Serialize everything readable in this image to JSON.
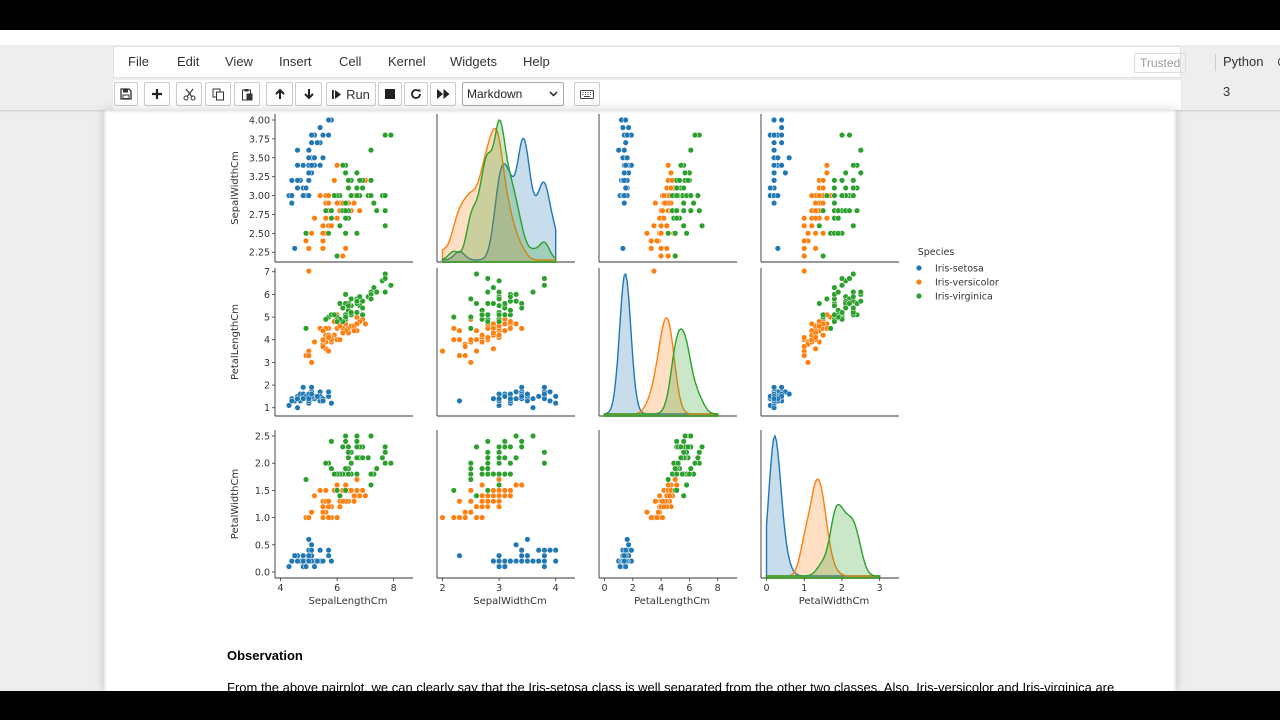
{
  "menubar": {
    "items": [
      "File",
      "Edit",
      "View",
      "Insert",
      "Cell",
      "Kernel",
      "Widgets",
      "Help"
    ],
    "trusted_label": "Trusted",
    "kernel_name": "Python 3"
  },
  "toolbar": {
    "run_label": "Run",
    "cell_type": "Markdown",
    "icons": [
      "save-icon",
      "add-cell-icon",
      "cut-icon",
      "copy-icon",
      "paste-icon",
      "move-up-icon",
      "move-down-icon",
      "run-icon",
      "stop-icon",
      "restart-icon",
      "fast-forward-icon",
      "keyboard-icon"
    ]
  },
  "markdown": {
    "heading": "Observation",
    "paragraph": "From the above pairplot, we can clearly say that the Iris-setosa class is well separated from the other two classes. Also, Iris-versicolor and Iris-virginica are"
  },
  "chart_data": {
    "type": "scatter",
    "subtype": "pairplot",
    "legend": {
      "title": "Species",
      "entries": [
        "Iris-setosa",
        "Iris-versicolor",
        "Iris-virginica"
      ],
      "placement": "right"
    },
    "colors": {
      "Iris-setosa": "#1f77b4",
      "Iris-versicolor": "#ff7f0e",
      "Iris-virginica": "#2ca02c"
    },
    "variables": [
      "SepalLengthCm",
      "SepalWidthCm",
      "PetalLengthCm",
      "PetalWidthCm"
    ],
    "rows": [
      "SepalWidthCm",
      "PetalLengthCm",
      "PetalWidthCm"
    ],
    "columns": [
      "SepalLengthCm",
      "SepalWidthCm",
      "PetalLengthCm",
      "PetalWidthCm"
    ],
    "diagonal": "kde",
    "axis_ranges": {
      "SepalLengthCm": [
        4,
        8
      ],
      "SepalWidthCm": [
        2,
        4
      ],
      "PetalLengthCm": [
        0,
        8
      ],
      "PetalWidthCm": [
        0,
        3
      ]
    },
    "ticks": {
      "SepalLengthCm": [
        "4",
        "6",
        "8"
      ],
      "SepalWidthCm": [
        "2",
        "3",
        "4"
      ],
      "PetalLengthCm": [
        "0",
        "2",
        "4",
        "6",
        "8"
      ],
      "PetalWidthCm": [
        "0",
        "1",
        "2",
        "3"
      ]
    },
    "y_ticks": {
      "SepalWidthCm": [
        "2.25",
        "2.50",
        "2.75",
        "3.00",
        "3.25",
        "3.50",
        "3.75",
        "4.00"
      ],
      "PetalLengthCm": [
        "1",
        "2",
        "3",
        "4",
        "5",
        "6",
        "7"
      ],
      "PetalWidthCm": [
        "0.0",
        "0.5",
        "1.0",
        "1.5",
        "2.0",
        "2.5"
      ]
    },
    "grid": false,
    "data": {
      "Iris-setosa": {
        "SepalLengthCm": [
          5.1,
          4.9,
          4.7,
          4.6,
          5.0,
          5.4,
          4.6,
          5.0,
          4.4,
          4.9,
          5.4,
          4.8,
          4.8,
          4.3,
          5.8,
          5.7,
          5.4,
          5.1,
          5.7,
          5.1,
          5.4,
          5.1,
          4.6,
          5.1,
          4.8,
          5.0,
          5.0,
          5.2,
          5.2,
          4.7,
          4.8,
          5.4,
          5.2,
          5.5,
          4.9,
          5.0,
          5.5,
          4.9,
          4.4,
          5.1,
          5.0,
          4.5,
          4.4,
          5.0,
          5.1,
          4.8,
          5.1,
          4.6,
          5.3,
          5.0
        ],
        "SepalWidthCm": [
          3.5,
          3.0,
          3.2,
          3.1,
          3.6,
          3.9,
          3.4,
          3.4,
          2.9,
          3.1,
          3.7,
          3.4,
          3.0,
          3.0,
          4.0,
          4.0,
          3.9,
          3.5,
          3.8,
          3.8,
          3.4,
          3.7,
          3.6,
          3.3,
          3.4,
          3.0,
          3.4,
          3.5,
          3.4,
          3.2,
          3.1,
          3.4,
          3.8,
          3.8,
          3.1,
          3.2,
          3.5,
          3.1,
          3.0,
          3.4,
          3.5,
          2.3,
          3.2,
          3.5,
          3.8,
          3.0,
          3.8,
          3.2,
          3.7,
          3.3
        ],
        "PetalLengthCm": [
          1.4,
          1.4,
          1.3,
          1.5,
          1.4,
          1.7,
          1.4,
          1.5,
          1.4,
          1.5,
          1.5,
          1.6,
          1.4,
          1.1,
          1.2,
          1.5,
          1.3,
          1.4,
          1.7,
          1.5,
          1.7,
          1.5,
          1.0,
          1.7,
          1.9,
          1.6,
          1.6,
          1.5,
          1.4,
          1.6,
          1.6,
          1.5,
          1.5,
          1.4,
          1.5,
          1.2,
          1.3,
          1.5,
          1.3,
          1.5,
          1.3,
          1.3,
          1.3,
          1.6,
          1.9,
          1.4,
          1.6,
          1.4,
          1.5,
          1.4
        ],
        "PetalWidthCm": [
          0.2,
          0.2,
          0.2,
          0.2,
          0.2,
          0.4,
          0.3,
          0.2,
          0.2,
          0.1,
          0.2,
          0.2,
          0.1,
          0.1,
          0.2,
          0.4,
          0.4,
          0.3,
          0.3,
          0.3,
          0.2,
          0.4,
          0.2,
          0.5,
          0.2,
          0.2,
          0.4,
          0.2,
          0.2,
          0.2,
          0.2,
          0.4,
          0.1,
          0.2,
          0.1,
          0.2,
          0.2,
          0.1,
          0.2,
          0.2,
          0.3,
          0.3,
          0.2,
          0.6,
          0.4,
          0.3,
          0.2,
          0.2,
          0.2,
          0.2
        ]
      },
      "Iris-versicolor": {
        "SepalLengthCm": [
          7.0,
          6.4,
          6.9,
          5.5,
          6.5,
          5.7,
          6.3,
          4.9,
          6.6,
          5.2,
          5.0,
          5.9,
          6.0,
          6.1,
          5.6,
          6.7,
          5.6,
          5.8,
          6.2,
          5.6,
          5.9,
          6.1,
          6.3,
          6.1,
          6.4,
          6.6,
          6.8,
          6.7,
          6.0,
          5.7,
          5.5,
          5.5,
          5.8,
          6.0,
          5.4,
          6.0,
          6.7,
          6.3,
          5.6,
          5.5,
          5.5,
          6.1,
          5.8,
          5.0,
          5.6,
          5.7,
          5.7,
          6.2,
          5.1,
          5.7
        ],
        "SepalWidthCm": [
          3.2,
          3.2,
          3.1,
          2.3,
          2.8,
          2.8,
          3.3,
          2.4,
          2.9,
          2.7,
          2.0,
          3.0,
          2.2,
          2.9,
          2.9,
          3.1,
          3.0,
          2.7,
          2.2,
          2.5,
          3.2,
          2.8,
          2.5,
          2.8,
          2.9,
          3.0,
          2.8,
          3.0,
          2.9,
          2.6,
          2.4,
          2.4,
          2.7,
          2.7,
          3.0,
          3.4,
          3.1,
          2.3,
          3.0,
          2.5,
          2.6,
          3.0,
          2.6,
          2.3,
          2.7,
          3.0,
          2.9,
          2.9,
          2.5,
          2.8
        ],
        "PetalLengthCm": [
          4.7,
          4.5,
          4.9,
          4.0,
          4.6,
          4.5,
          4.7,
          3.3,
          4.6,
          3.9,
          3.5,
          4.2,
          4.0,
          4.7,
          3.6,
          4.4,
          4.5,
          4.1,
          4.5,
          3.9,
          4.8,
          4.0,
          4.9,
          4.7,
          4.3,
          4.4,
          4.8,
          5.0,
          4.5,
          3.5,
          3.8,
          3.7,
          3.9,
          5.1,
          4.5,
          4.5,
          4.7,
          4.4,
          4.1,
          4.0,
          4.4,
          4.6,
          4.0,
          3.3,
          4.2,
          4.2,
          4.2,
          4.3,
          3.0,
          4.1
        ],
        "PetalWidthCm": [
          1.4,
          1.5,
          1.5,
          1.3,
          1.5,
          1.3,
          1.6,
          1.0,
          1.3,
          1.4,
          1.0,
          1.5,
          1.0,
          1.4,
          1.3,
          1.4,
          1.5,
          1.0,
          1.5,
          1.1,
          1.8,
          1.3,
          1.5,
          1.2,
          1.3,
          1.4,
          1.4,
          1.7,
          1.5,
          1.0,
          1.1,
          1.0,
          1.2,
          1.6,
          1.5,
          1.6,
          1.5,
          1.3,
          1.3,
          1.3,
          1.2,
          1.4,
          1.2,
          1.0,
          1.3,
          1.2,
          1.3,
          1.3,
          1.1,
          1.3
        ]
      },
      "Iris-virginica": {
        "SepalLengthCm": [
          6.3,
          5.8,
          7.1,
          6.3,
          6.5,
          7.6,
          4.9,
          7.3,
          6.7,
          7.2,
          6.5,
          6.4,
          6.8,
          5.7,
          5.8,
          6.4,
          6.5,
          7.7,
          7.7,
          6.0,
          6.9,
          5.6,
          7.7,
          6.3,
          6.7,
          7.2,
          6.2,
          6.1,
          6.4,
          7.2,
          7.4,
          7.9,
          6.4,
          6.3,
          6.1,
          7.7,
          6.3,
          6.4,
          6.0,
          6.9,
          6.7,
          6.9,
          5.8,
          6.8,
          6.7,
          6.7,
          6.3,
          6.5,
          6.2,
          5.9
        ],
        "SepalWidthCm": [
          3.3,
          2.7,
          3.0,
          2.9,
          3.0,
          3.0,
          2.5,
          2.9,
          2.5,
          3.6,
          3.2,
          2.7,
          3.0,
          2.5,
          2.8,
          3.2,
          3.0,
          3.8,
          2.6,
          2.2,
          3.2,
          2.8,
          2.8,
          2.7,
          3.3,
          3.2,
          2.8,
          3.0,
          2.8,
          3.0,
          2.8,
          3.8,
          2.8,
          2.8,
          2.6,
          3.0,
          3.4,
          3.1,
          3.0,
          3.1,
          3.1,
          3.1,
          2.7,
          3.2,
          3.3,
          3.0,
          2.5,
          3.0,
          3.4,
          3.0
        ],
        "PetalLengthCm": [
          6.0,
          5.1,
          5.9,
          5.6,
          5.8,
          6.6,
          4.5,
          6.3,
          5.8,
          6.1,
          5.1,
          5.3,
          5.5,
          5.0,
          5.1,
          5.3,
          5.5,
          6.7,
          6.9,
          5.0,
          5.7,
          4.9,
          6.7,
          4.9,
          5.7,
          6.0,
          4.8,
          4.9,
          5.6,
          5.8,
          6.1,
          6.4,
          5.6,
          5.1,
          5.6,
          6.1,
          5.6,
          5.5,
          4.8,
          5.4,
          5.6,
          5.1,
          5.1,
          5.9,
          5.7,
          5.2,
          5.0,
          5.2,
          5.4,
          5.1
        ],
        "PetalWidthCm": [
          2.5,
          1.9,
          2.1,
          1.8,
          2.2,
          2.1,
          1.7,
          1.8,
          1.8,
          2.5,
          2.0,
          1.9,
          2.1,
          2.0,
          2.4,
          2.3,
          1.8,
          2.2,
          2.3,
          1.5,
          2.3,
          2.0,
          2.0,
          1.8,
          2.1,
          1.8,
          1.8,
          1.8,
          2.1,
          1.6,
          1.9,
          2.0,
          2.2,
          1.5,
          1.4,
          2.3,
          2.4,
          1.8,
          1.8,
          2.1,
          2.4,
          2.3,
          1.9,
          2.3,
          2.5,
          2.3,
          1.9,
          2.0,
          2.3,
          1.8
        ]
      }
    }
  }
}
